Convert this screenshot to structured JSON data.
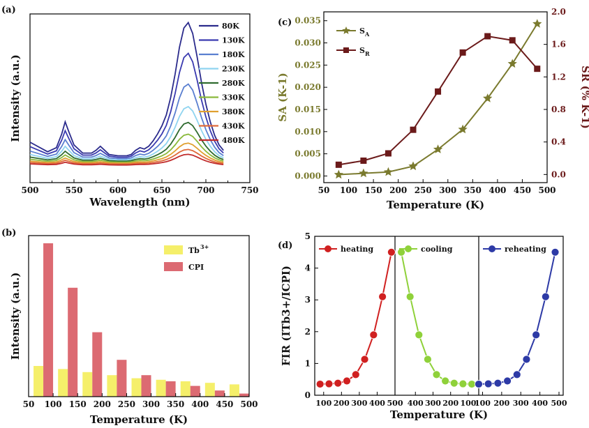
{
  "chart_data": [
    {
      "panel_label": "(a)",
      "type": "line",
      "xlabel": "Wavelength (nm)",
      "ylabel": "Intensity (a.u.)",
      "xlim": [
        500,
        750
      ],
      "xticks": [
        500,
        550,
        600,
        650,
        700,
        750
      ],
      "x": [
        500,
        520,
        530,
        536,
        540,
        544,
        550,
        560,
        570,
        575,
        580,
        585,
        590,
        600,
        610,
        615,
        620,
        625,
        630,
        635,
        640,
        645,
        650,
        655,
        660,
        665,
        670,
        675,
        680,
        685,
        690,
        695,
        700,
        705,
        710,
        715,
        720
      ],
      "profile": [
        0.12,
        0.05,
        0.08,
        0.18,
        0.27,
        0.2,
        0.1,
        0.04,
        0.04,
        0.06,
        0.09,
        0.06,
        0.03,
        0.02,
        0.02,
        0.03,
        0.06,
        0.08,
        0.07,
        0.09,
        0.13,
        0.18,
        0.24,
        0.32,
        0.45,
        0.62,
        0.82,
        0.96,
        1.0,
        0.92,
        0.75,
        0.56,
        0.4,
        0.27,
        0.17,
        0.1,
        0.06
      ],
      "series": [
        {
          "name": "80K",
          "color": "#2b2b8c",
          "scale": 1.0
        },
        {
          "name": "130K",
          "color": "#3a3ab0",
          "scale": 0.78
        },
        {
          "name": "180K",
          "color": "#5a7fd0",
          "scale": 0.56
        },
        {
          "name": "230K",
          "color": "#8fd4f0",
          "scale": 0.4
        },
        {
          "name": "280K",
          "color": "#2f6b2f",
          "scale": 0.29
        },
        {
          "name": "330K",
          "color": "#8ab93b",
          "scale": 0.21
        },
        {
          "name": "380K",
          "color": "#e0a030",
          "scale": 0.15
        },
        {
          "name": "430K",
          "color": "#e06a3a",
          "scale": 0.11
        },
        {
          "name": "480K",
          "color": "#c02a2a",
          "scale": 0.08
        }
      ]
    },
    {
      "panel_label": "(b)",
      "type": "bar",
      "xlabel": "Temperature (K)",
      "ylabel": "Intensity (a.u.)",
      "xlim": [
        50,
        500
      ],
      "xticks": [
        50,
        100,
        150,
        200,
        250,
        300,
        350,
        400,
        450,
        500
      ],
      "categories": [
        80,
        130,
        180,
        230,
        280,
        330,
        380,
        430,
        480
      ],
      "series": [
        {
          "name": "Tb3+",
          "color": "#f5ef6a",
          "values": [
            0.2,
            0.18,
            0.16,
            0.14,
            0.12,
            0.11,
            0.1,
            0.09,
            0.08
          ]
        },
        {
          "name": "CPI",
          "color": "#dc6a72",
          "values": [
            1.0,
            0.71,
            0.42,
            0.24,
            0.14,
            0.1,
            0.07,
            0.04,
            0.02
          ]
        }
      ],
      "ylim": [
        0,
        1.05
      ]
    },
    {
      "panel_label": "(c)",
      "type": "line",
      "xlabel": "Temperature (K)",
      "ylabel": "SA (K-1)",
      "y2label": "SR (% K-1)",
      "xlim": [
        50,
        500
      ],
      "ylim": [
        -0.0015,
        0.037
      ],
      "y2lim": [
        -0.1,
        2.0
      ],
      "xticks": [
        50,
        100,
        150,
        200,
        250,
        300,
        350,
        400,
        450,
        500
      ],
      "yticks": [
        "0.000",
        "0.005",
        "0.010",
        "0.015",
        "0.020",
        "0.025",
        "0.030",
        "0.035"
      ],
      "y2ticks": [
        "0.0",
        "0.4",
        "0.8",
        "1.2",
        "1.6",
        "2.0"
      ],
      "x": [
        80,
        130,
        180,
        230,
        280,
        330,
        380,
        430,
        480
      ],
      "series": [
        {
          "name": "SA",
          "color": "#7a7a2e",
          "values": [
            0.0003,
            0.0006,
            0.0009,
            0.0022,
            0.006,
            0.0105,
            0.0175,
            0.0253,
            0.0343
          ]
        },
        {
          "name": "SR",
          "color": "#6b1a1a",
          "values": [
            0.12,
            0.17,
            0.26,
            0.55,
            1.02,
            1.5,
            1.7,
            1.65,
            1.3
          ]
        }
      ]
    },
    {
      "panel_label": "(d)",
      "type": "line",
      "xlabel": "Temperature (K)",
      "ylabel": "FIR (ITb3+/ICPI)",
      "ylim": [
        0,
        5
      ],
      "yticks": [
        0,
        1,
        2,
        3,
        4,
        5
      ],
      "segments": [
        {
          "name": "heating",
          "color": "#d02020",
          "x": [
            80,
            130,
            180,
            230,
            280,
            330,
            380,
            430,
            480
          ],
          "values": [
            0.35,
            0.36,
            0.38,
            0.45,
            0.65,
            1.13,
            1.9,
            3.1,
            4.5
          ]
        },
        {
          "name": "cooling",
          "color": "#8fd13a",
          "x": [
            480,
            430,
            380,
            330,
            280,
            230,
            180,
            130,
            80
          ],
          "values": [
            4.5,
            3.1,
            1.9,
            1.13,
            0.65,
            0.45,
            0.38,
            0.36,
            0.35
          ]
        },
        {
          "name": "reheating",
          "color": "#2d3aa6",
          "x": [
            80,
            130,
            180,
            230,
            280,
            330,
            380,
            430,
            480
          ],
          "values": [
            0.35,
            0.36,
            0.38,
            0.45,
            0.65,
            1.13,
            1.9,
            3.1,
            4.5
          ]
        }
      ],
      "xtick_labels": [
        "100",
        "200",
        "300",
        "400",
        "500",
        "400",
        "300",
        "200",
        "100",
        "100",
        "200",
        "300",
        "400",
        "500"
      ]
    }
  ]
}
